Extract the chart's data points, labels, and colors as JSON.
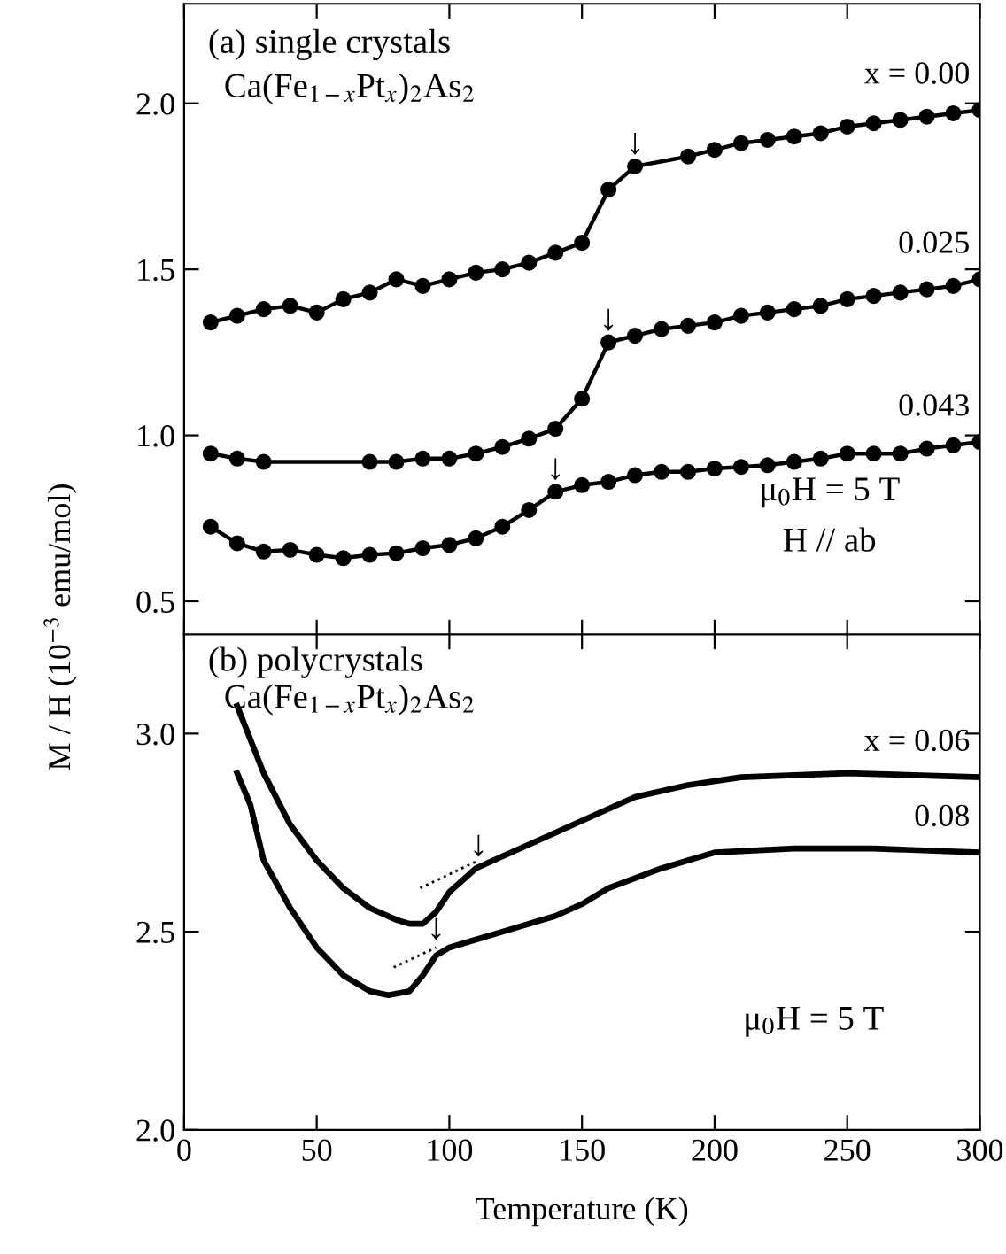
{
  "chart_data": [
    {
      "type": "line",
      "ylabel": "M / H (10$^{−3}$ emu/mol)",
      "xlim": [
        0,
        300
      ],
      "xticks": [
        0,
        50,
        100,
        150,
        200,
        250,
        300
      ],
      "ylim": [
        0.4,
        2.3
      ],
      "yticks": [
        0.5,
        {
          "value": 1,
          "label": "1.0"
        },
        1.5,
        {
          "value": 2,
          "label": "2.0"
        }
      ],
      "tick_labels": "y",
      "marker": "circle",
      "line_style": "solid",
      "grid": false,
      "annotations": [
        "(a) single crystals",
        "Ca(Fe$_{1−x}$Pt$_{x}$)$_{2}$As$_{2}$",
        "μ$_{0}$H = 5 T",
        "H // ab",
        {
          "text": "↓",
          "x": 170,
          "y": 1.81
        },
        {
          "text": "↓",
          "x": 160,
          "y": 1.28
        },
        {
          "text": "↓",
          "x": 140,
          "y": 0.83
        }
      ],
      "series": [
        {
          "name": "x = 0.00",
          "color": "#000000",
          "x": [
            10,
            20,
            30,
            40,
            50,
            60,
            70,
            80,
            90,
            100,
            110,
            120,
            130,
            140,
            150,
            160,
            170,
            190,
            200,
            210,
            220,
            230,
            240,
            250,
            260,
            270,
            280,
            290,
            300
          ],
          "values": [
            1.34,
            1.36,
            1.38,
            1.39,
            1.37,
            1.41,
            1.43,
            1.47,
            1.45,
            1.47,
            1.49,
            1.5,
            1.52,
            1.55,
            1.58,
            1.74,
            1.81,
            1.84,
            1.86,
            1.88,
            1.89,
            1.9,
            1.91,
            1.93,
            1.94,
            1.95,
            1.96,
            1.97,
            1.98
          ]
        },
        {
          "name": "0.025",
          "color": "#000000",
          "x": [
            10,
            20,
            30,
            70,
            80,
            90,
            100,
            110,
            120,
            130,
            140,
            150,
            160,
            170,
            180,
            190,
            200,
            210,
            220,
            230,
            240,
            250,
            260,
            270,
            280,
            290,
            300
          ],
          "values": [
            0.945,
            0.93,
            0.92,
            0.92,
            0.92,
            0.93,
            0.93,
            0.945,
            0.965,
            0.99,
            1.02,
            1.11,
            1.28,
            1.3,
            1.32,
            1.33,
            1.34,
            1.36,
            1.37,
            1.38,
            1.39,
            1.41,
            1.42,
            1.43,
            1.44,
            1.45,
            1.47
          ]
        },
        {
          "name": "0.043",
          "color": "#000000",
          "x": [
            10,
            20,
            30,
            40,
            50,
            60,
            70,
            80,
            90,
            100,
            110,
            120,
            130,
            140,
            150,
            160,
            170,
            180,
            190,
            200,
            210,
            220,
            230,
            240,
            250,
            260,
            270,
            280,
            290,
            300
          ],
          "values": [
            0.725,
            0.675,
            0.65,
            0.655,
            0.64,
            0.63,
            0.64,
            0.645,
            0.66,
            0.67,
            0.69,
            0.725,
            0.775,
            0.83,
            0.85,
            0.86,
            0.88,
            0.89,
            0.89,
            0.9,
            0.905,
            0.91,
            0.92,
            0.93,
            0.945,
            0.945,
            0.945,
            0.96,
            0.97,
            0.98
          ]
        }
      ]
    },
    {
      "type": "line",
      "xlabel": "Temperature (K)",
      "xlim": [
        0,
        300
      ],
      "xticks": [
        0,
        50,
        100,
        150,
        200,
        250,
        300
      ],
      "ylim": [
        2.0,
        3.25
      ],
      "yticks": [
        {
          "value": 2,
          "label": "2.0"
        },
        2.5,
        {
          "value": 3,
          "label": "3.0"
        }
      ],
      "marker": "none",
      "line_style": "solid",
      "grid": false,
      "annotations": [
        "(b) polycrystals",
        "Ca(Fe$_{1−x}$Pt$_{x}$)$_{2}$As$_{2}$",
        "μ$_{0}$H = 5 T",
        {
          "text": "↓",
          "x": 111,
          "y": 2.66
        },
        {
          "text": "↓",
          "x": 95,
          "y": 2.45
        }
      ],
      "series": [
        {
          "name": "x = 0.06",
          "color": "#000000",
          "x": [
            20,
            30,
            40,
            50,
            60,
            70,
            80,
            85,
            90,
            95,
            100,
            105,
            110,
            120,
            140,
            150,
            170,
            190,
            210,
            250,
            300
          ],
          "values": [
            3.07,
            2.9,
            2.77,
            2.68,
            2.61,
            2.56,
            2.53,
            2.52,
            2.52,
            2.55,
            2.6,
            2.63,
            2.66,
            2.69,
            2.75,
            2.78,
            2.84,
            2.87,
            2.89,
            2.9,
            2.89
          ]
        },
        {
          "name": "0.08",
          "color": "#000000",
          "x": [
            20,
            25,
            30,
            40,
            50,
            60,
            70,
            77,
            85,
            90,
            95,
            100,
            110,
            120,
            140,
            150,
            160,
            180,
            200,
            230,
            260,
            300
          ],
          "values": [
            2.9,
            2.82,
            2.68,
            2.56,
            2.46,
            2.39,
            2.35,
            2.34,
            2.35,
            2.39,
            2.44,
            2.46,
            2.48,
            2.5,
            2.54,
            2.57,
            2.61,
            2.66,
            2.7,
            2.71,
            2.71,
            2.7
          ]
        },
        {
          "color": "#000000",
          "line_style": "dotted",
          "x": [
            89,
            111
          ],
          "values": [
            2.61,
            2.68
          ]
        },
        {
          "color": "#000000",
          "line_style": "dotted",
          "x": [
            79,
            95
          ],
          "values": [
            2.41,
            2.46
          ]
        }
      ]
    }
  ]
}
